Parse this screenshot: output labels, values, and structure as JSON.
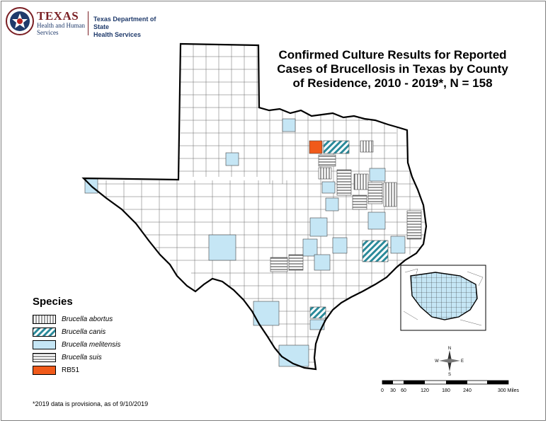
{
  "header": {
    "logo_main": "TEXAS",
    "logo_line2": "Health and Human",
    "logo_line3": "Services",
    "dept_line1": "Texas Department of State",
    "dept_line2": "Health Services"
  },
  "title": {
    "line1": "Confirmed Culture Results for Reported",
    "line2": "Cases of Brucellosis in Texas by County",
    "line3": "of Residence, 2010 - 2019*, N = 158"
  },
  "legend": {
    "title": "Species",
    "items": [
      {
        "label": "Brucella abortus",
        "pattern": "vertical-lines",
        "italic": true
      },
      {
        "label": "Brucella canis",
        "pattern": "teal-diagonal-stripes",
        "italic": true
      },
      {
        "label": "Brucella melitensis",
        "pattern": "light-blue-fill",
        "italic": true
      },
      {
        "label": "Brucella suis",
        "pattern": "horizontal-lines",
        "italic": true
      },
      {
        "label": "RB51",
        "pattern": "orange-fill",
        "italic": false
      }
    ]
  },
  "colors": {
    "melitensis": "#c5e6f5",
    "canis": "#2a8a9a",
    "rb51": "#f05a1a",
    "border": "#444444"
  },
  "scale": {
    "labels": [
      "0",
      "30",
      "60",
      "120",
      "180",
      "240",
      "300 Miles"
    ]
  },
  "compass": {
    "n": "N",
    "s": "S",
    "e": "E",
    "w": "W"
  },
  "footnote": "*2019 data is provisiona, as of 9/10/2019"
}
